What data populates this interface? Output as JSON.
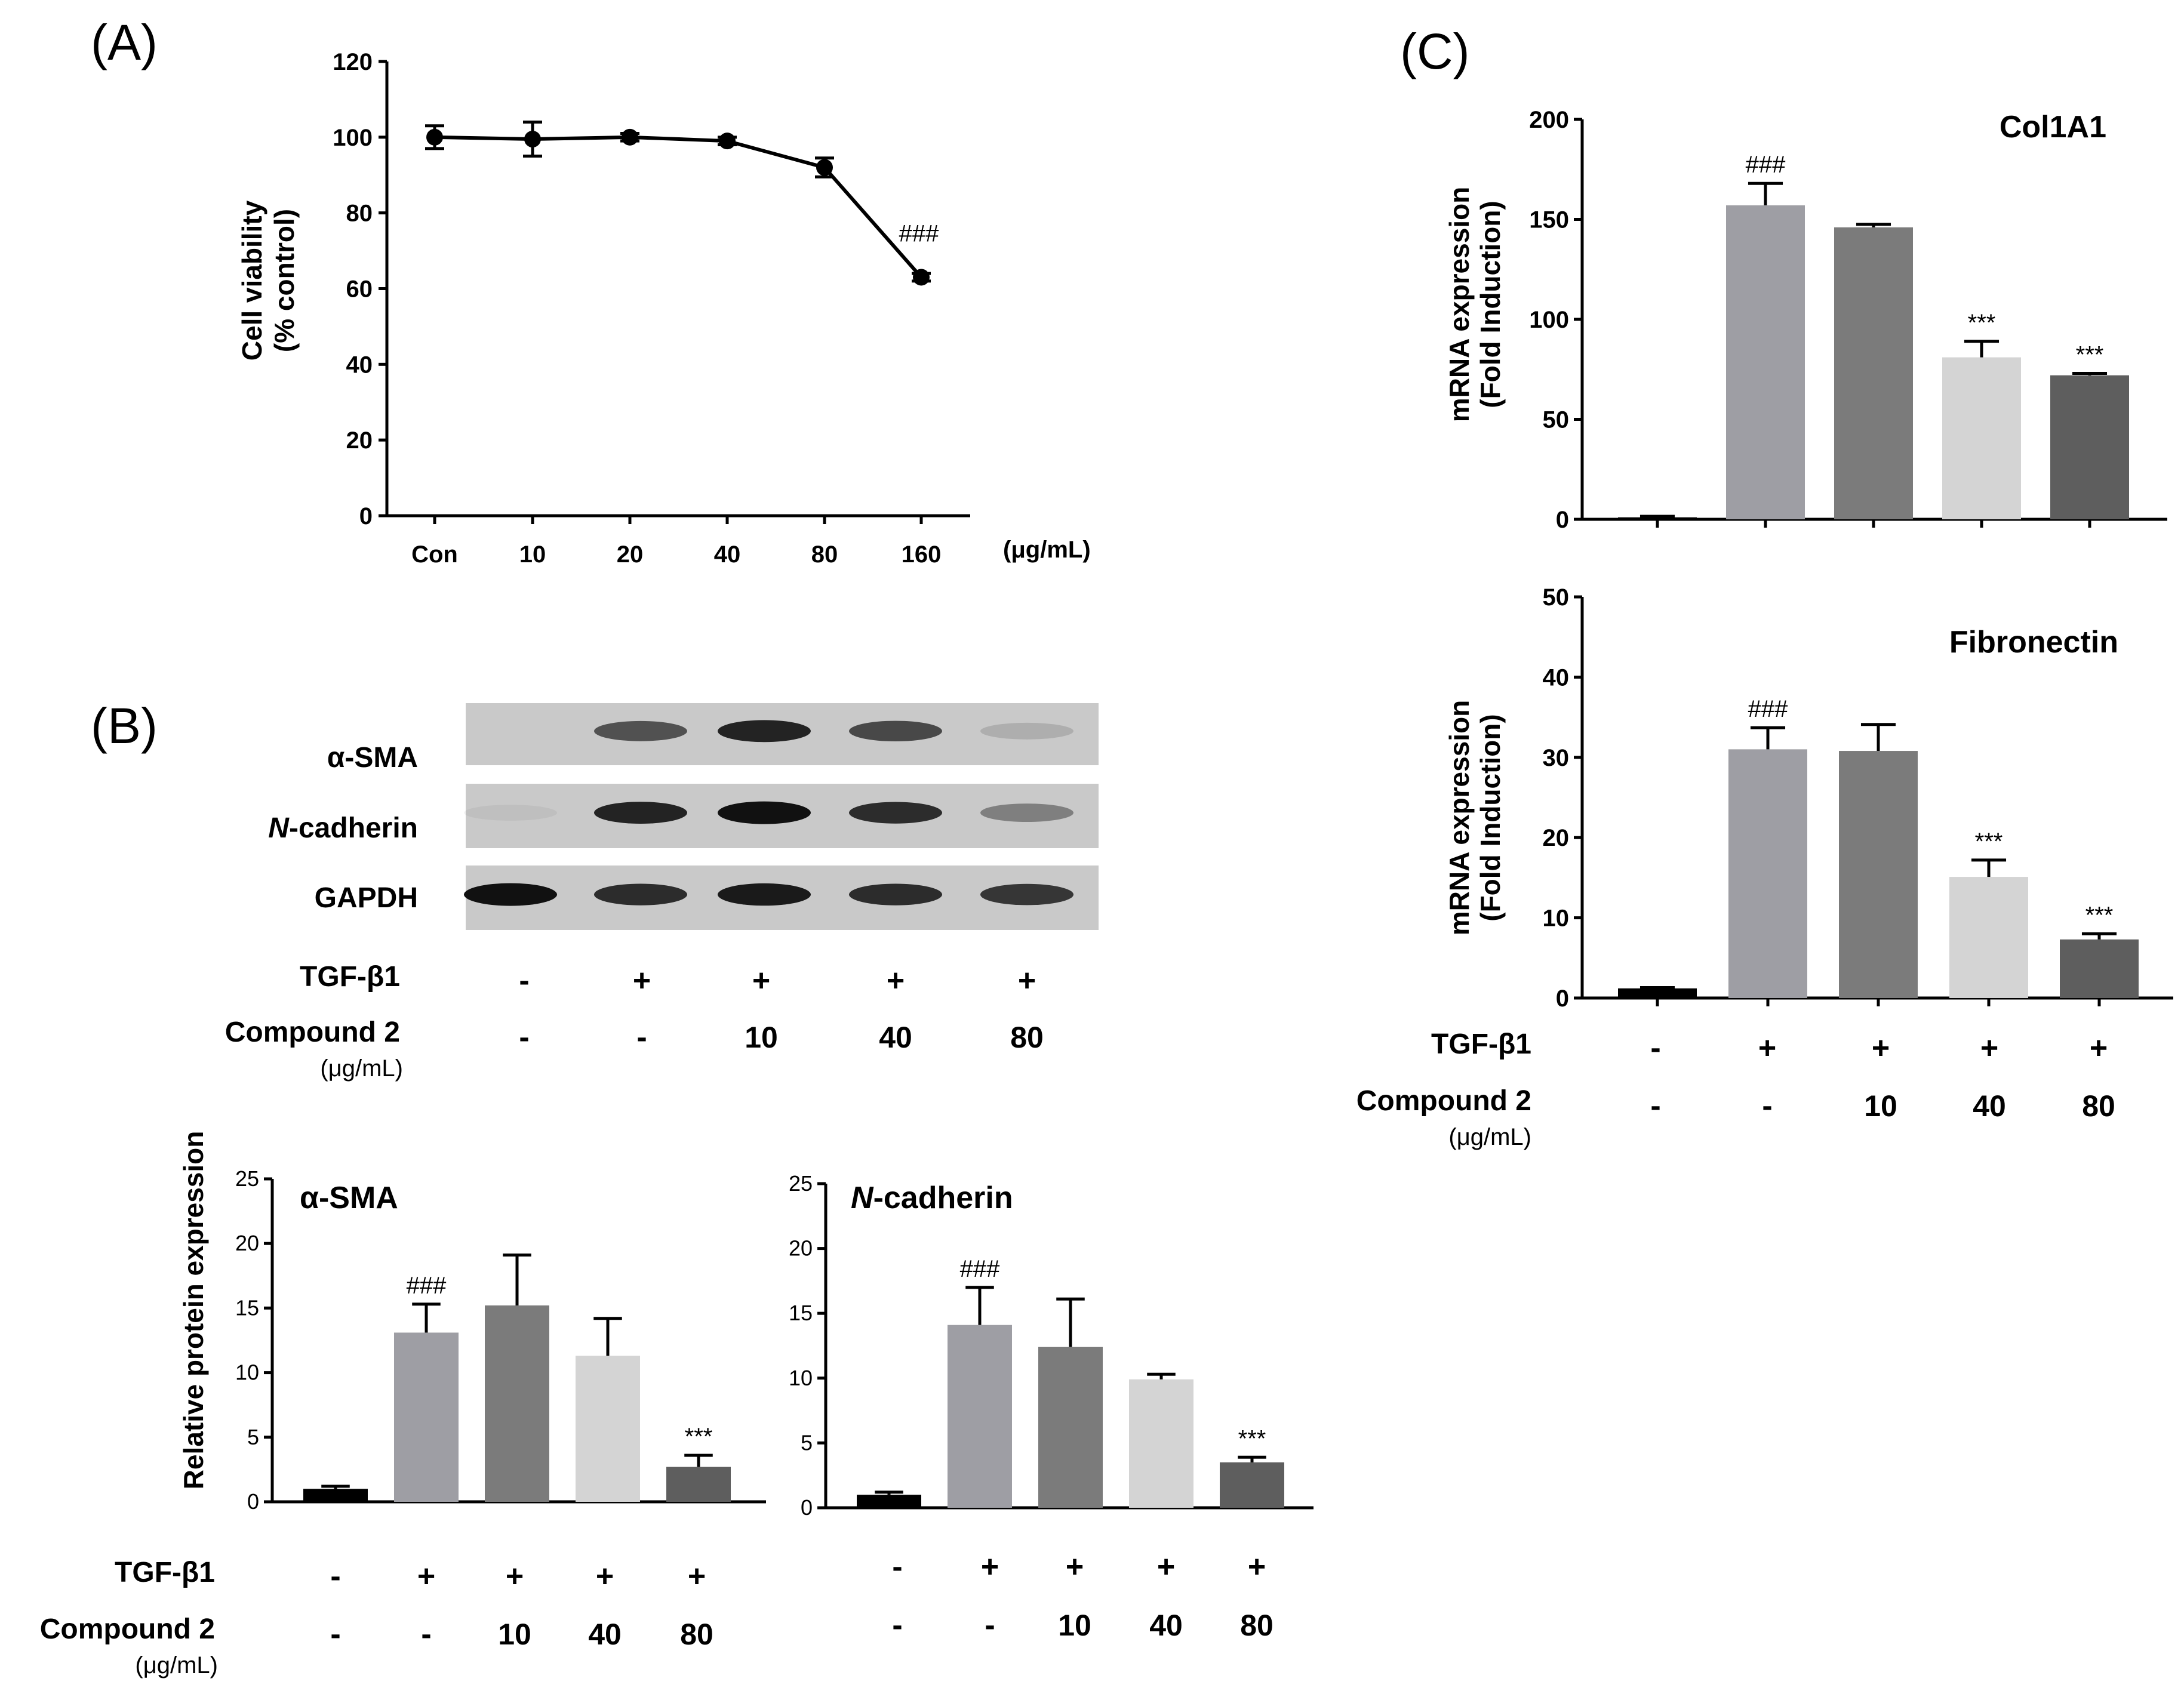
{
  "panels": {
    "a": "(A)",
    "b": "(B)",
    "c": "(C)"
  },
  "treatment": {
    "tgf_label": "TGF-β1",
    "compound_label": "Compound 2",
    "compound_unit": "(μg/mL)",
    "tgf": [
      "-",
      "+",
      "+",
      "+",
      "+"
    ],
    "compound": [
      "-",
      "-",
      "10",
      "40",
      "80"
    ]
  },
  "blot": {
    "labels": [
      "α-SMA",
      "N-cadherin",
      "GAPDH"
    ],
    "bands": [
      [
        0.0,
        0.65,
        0.9,
        0.7,
        0.15
      ],
      [
        0.05,
        0.9,
        1.0,
        0.85,
        0.4
      ],
      [
        1.0,
        0.85,
        0.95,
        0.85,
        0.8
      ]
    ]
  },
  "chart_data": [
    {
      "id": "A",
      "type": "line",
      "title": "",
      "xlabel": "",
      "x_unit": "(μg/mL)",
      "ylabel": [
        "Cell viability",
        "(% control)"
      ],
      "categories": [
        "Con",
        "10",
        "20",
        "40",
        "80",
        "160"
      ],
      "values": [
        100,
        99.5,
        100,
        99,
        92,
        63
      ],
      "errors": [
        3,
        4.5,
        1,
        1,
        2.5,
        1
      ],
      "ylim": [
        0,
        120
      ],
      "yticks": [
        0,
        20,
        40,
        60,
        80,
        100,
        120
      ],
      "annotations": [
        "",
        "",
        "",
        "",
        "",
        "###"
      ],
      "color": "#000000"
    },
    {
      "id": "B1",
      "type": "bar",
      "title": "α-SMA",
      "ylabel": "Relative protein expression",
      "values": [
        1,
        13.1,
        15.2,
        11.3,
        2.7
      ],
      "errors": [
        0.2,
        2.2,
        3.9,
        2.9,
        0.9
      ],
      "annotations": [
        "",
        "###",
        "",
        "",
        "***"
      ],
      "colors": [
        "#000000",
        "#9e9ea4",
        "#7b7b7b",
        "#d4d4d4",
        "#5e5e5e"
      ],
      "ylim": [
        0,
        25
      ],
      "yticks": [
        0,
        5,
        10,
        15,
        20,
        25
      ]
    },
    {
      "id": "B2",
      "type": "bar",
      "title": "N-cadherin",
      "ylabel": "",
      "values": [
        1,
        14.1,
        12.4,
        9.9,
        3.5
      ],
      "errors": [
        0.2,
        2.9,
        3.7,
        0.4,
        0.4
      ],
      "annotations": [
        "",
        "###",
        "",
        "",
        "***"
      ],
      "colors": [
        "#000000",
        "#9e9ea4",
        "#7b7b7b",
        "#d4d4d4",
        "#5e5e5e"
      ],
      "ylim": [
        0,
        25
      ],
      "yticks": [
        0,
        5,
        10,
        15,
        20,
        25
      ]
    },
    {
      "id": "C1",
      "type": "bar",
      "title": "Col1A1",
      "ylabel": [
        "mRNA expression",
        "(Fold Induction)"
      ],
      "values": [
        1,
        157,
        146,
        81,
        72
      ],
      "errors": [
        0.5,
        11,
        1.5,
        8,
        1
      ],
      "annotations": [
        "",
        "###",
        "",
        "***",
        "***"
      ],
      "colors": [
        "#000000",
        "#9e9ea4",
        "#7b7b7b",
        "#d4d4d4",
        "#5e5e5e"
      ],
      "ylim": [
        0,
        200
      ],
      "yticks": [
        0,
        50,
        100,
        150,
        200
      ]
    },
    {
      "id": "C2",
      "type": "bar",
      "title": "Fibronectin",
      "ylabel": [
        "mRNA expression",
        "(Fold Induction)"
      ],
      "values": [
        1.2,
        31,
        30.8,
        15.1,
        7.3
      ],
      "errors": [
        0.1,
        2.7,
        3.3,
        2.1,
        0.7
      ],
      "annotations": [
        "",
        "###",
        "",
        "***",
        "***"
      ],
      "colors": [
        "#000000",
        "#9e9ea4",
        "#7b7b7b",
        "#d4d4d4",
        "#5e5e5e"
      ],
      "ylim": [
        0,
        50
      ],
      "yticks": [
        0,
        10,
        20,
        30,
        40,
        50
      ]
    }
  ]
}
